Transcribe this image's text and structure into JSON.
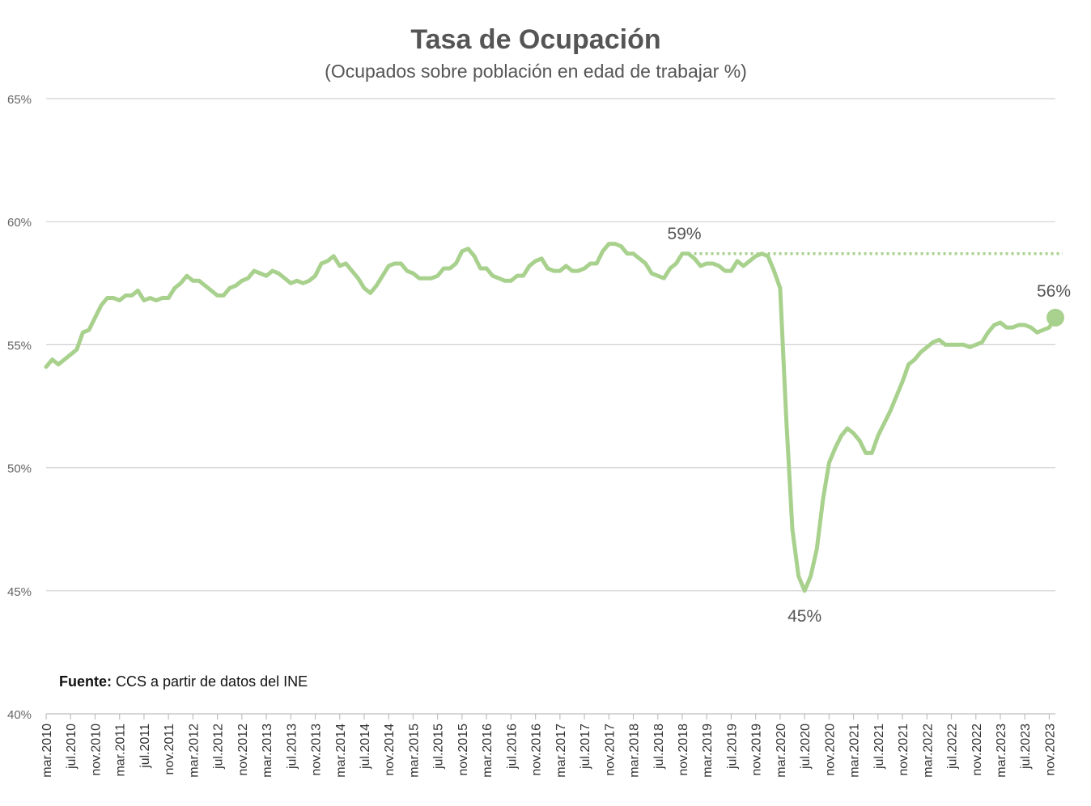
{
  "chart_data": {
    "type": "line",
    "title": "Tasa de Ocupación",
    "subtitle": "(Ocupados sobre población en edad de trabajar %)",
    "ylim": [
      40,
      65
    ],
    "yticks": [
      "40%",
      "45%",
      "50%",
      "55%",
      "60%",
      "65%"
    ],
    "grid": true,
    "xtick_labels": [
      "mar.2010",
      "jul.2010",
      "nov.2010",
      "mar.2011",
      "jul.2011",
      "nov.2011",
      "mar.2012",
      "jul.2012",
      "nov.2012",
      "mar.2013",
      "jul.2013",
      "nov.2013",
      "mar.2014",
      "jul.2014",
      "nov.2014",
      "mar.2015",
      "jul.2015",
      "nov.2015",
      "mar.2016",
      "jul.2016",
      "nov.2016",
      "mar.2017",
      "jul.2017",
      "nov.2017",
      "mar.2018",
      "jul.2018",
      "nov.2018",
      "mar.2019",
      "jul.2019",
      "nov.2019",
      "mar.2020",
      "jul.2020",
      "nov.2020",
      "mar.2021",
      "jul.2021",
      "nov.2021",
      "mar.2022",
      "jul.2022",
      "nov.2022",
      "mar.2023",
      "jul.2023",
      "nov.2023"
    ],
    "x_start": "2010-03",
    "line_color": "#a9d18e",
    "series": [
      {
        "values": [
          54.1,
          54.4,
          54.2,
          54.4,
          54.6,
          54.8,
          55.5,
          55.6,
          56.1,
          56.6,
          56.9,
          56.9,
          56.8,
          57.0,
          57.0,
          57.2,
          56.8,
          56.9,
          56.8,
          56.9,
          56.9,
          57.3,
          57.5,
          57.8,
          57.6,
          57.6,
          57.4,
          57.2,
          57.0,
          57.0,
          57.3,
          57.4,
          57.6,
          57.7,
          58.0,
          57.9,
          57.8,
          58.0,
          57.9,
          57.7,
          57.5,
          57.6,
          57.5,
          57.6,
          57.8,
          58.3,
          58.4,
          58.6,
          58.2,
          58.3,
          58.0,
          57.7,
          57.3,
          57.1,
          57.4,
          57.8,
          58.2,
          58.3,
          58.3,
          58.0,
          57.9,
          57.7,
          57.7,
          57.7,
          57.8,
          58.1,
          58.1,
          58.3,
          58.8,
          58.9,
          58.6,
          58.1,
          58.1,
          57.8,
          57.7,
          57.6,
          57.6,
          57.8,
          57.8,
          58.2,
          58.4,
          58.5,
          58.1,
          58.0,
          58.0,
          58.2,
          58.0,
          58.0,
          58.1,
          58.3,
          58.3,
          58.8,
          59.1,
          59.1,
          59.0,
          58.7,
          58.7,
          58.5,
          58.3,
          57.9,
          57.8,
          57.7,
          58.1,
          58.3,
          58.7,
          58.7,
          58.5,
          58.2,
          58.3,
          58.3,
          58.2,
          58.0,
          58.0,
          58.4,
          58.2,
          58.4,
          58.6,
          58.7,
          58.6,
          58.0,
          57.3,
          52.0,
          47.5,
          45.6,
          45.0,
          45.6,
          46.7,
          48.7,
          50.2,
          50.8,
          51.3,
          51.6,
          51.4,
          51.1,
          50.6,
          50.6,
          51.3,
          51.8,
          52.3,
          52.9,
          53.5,
          54.2,
          54.4,
          54.7,
          54.9,
          55.1,
          55.2,
          55.0,
          55.0,
          55.0,
          55.0,
          54.9,
          55.0,
          55.1,
          55.5,
          55.8,
          55.9,
          55.7,
          55.7,
          55.8,
          55.8,
          55.7,
          55.5,
          55.6,
          55.7,
          56.1
        ]
      }
    ],
    "annotations": {
      "pre_covid": "59%",
      "trough": "45%",
      "latest": "56%"
    },
    "reference_level": 58.7
  },
  "source": {
    "label": "Fuente:",
    "text": " CCS a partir de datos del INE"
  }
}
